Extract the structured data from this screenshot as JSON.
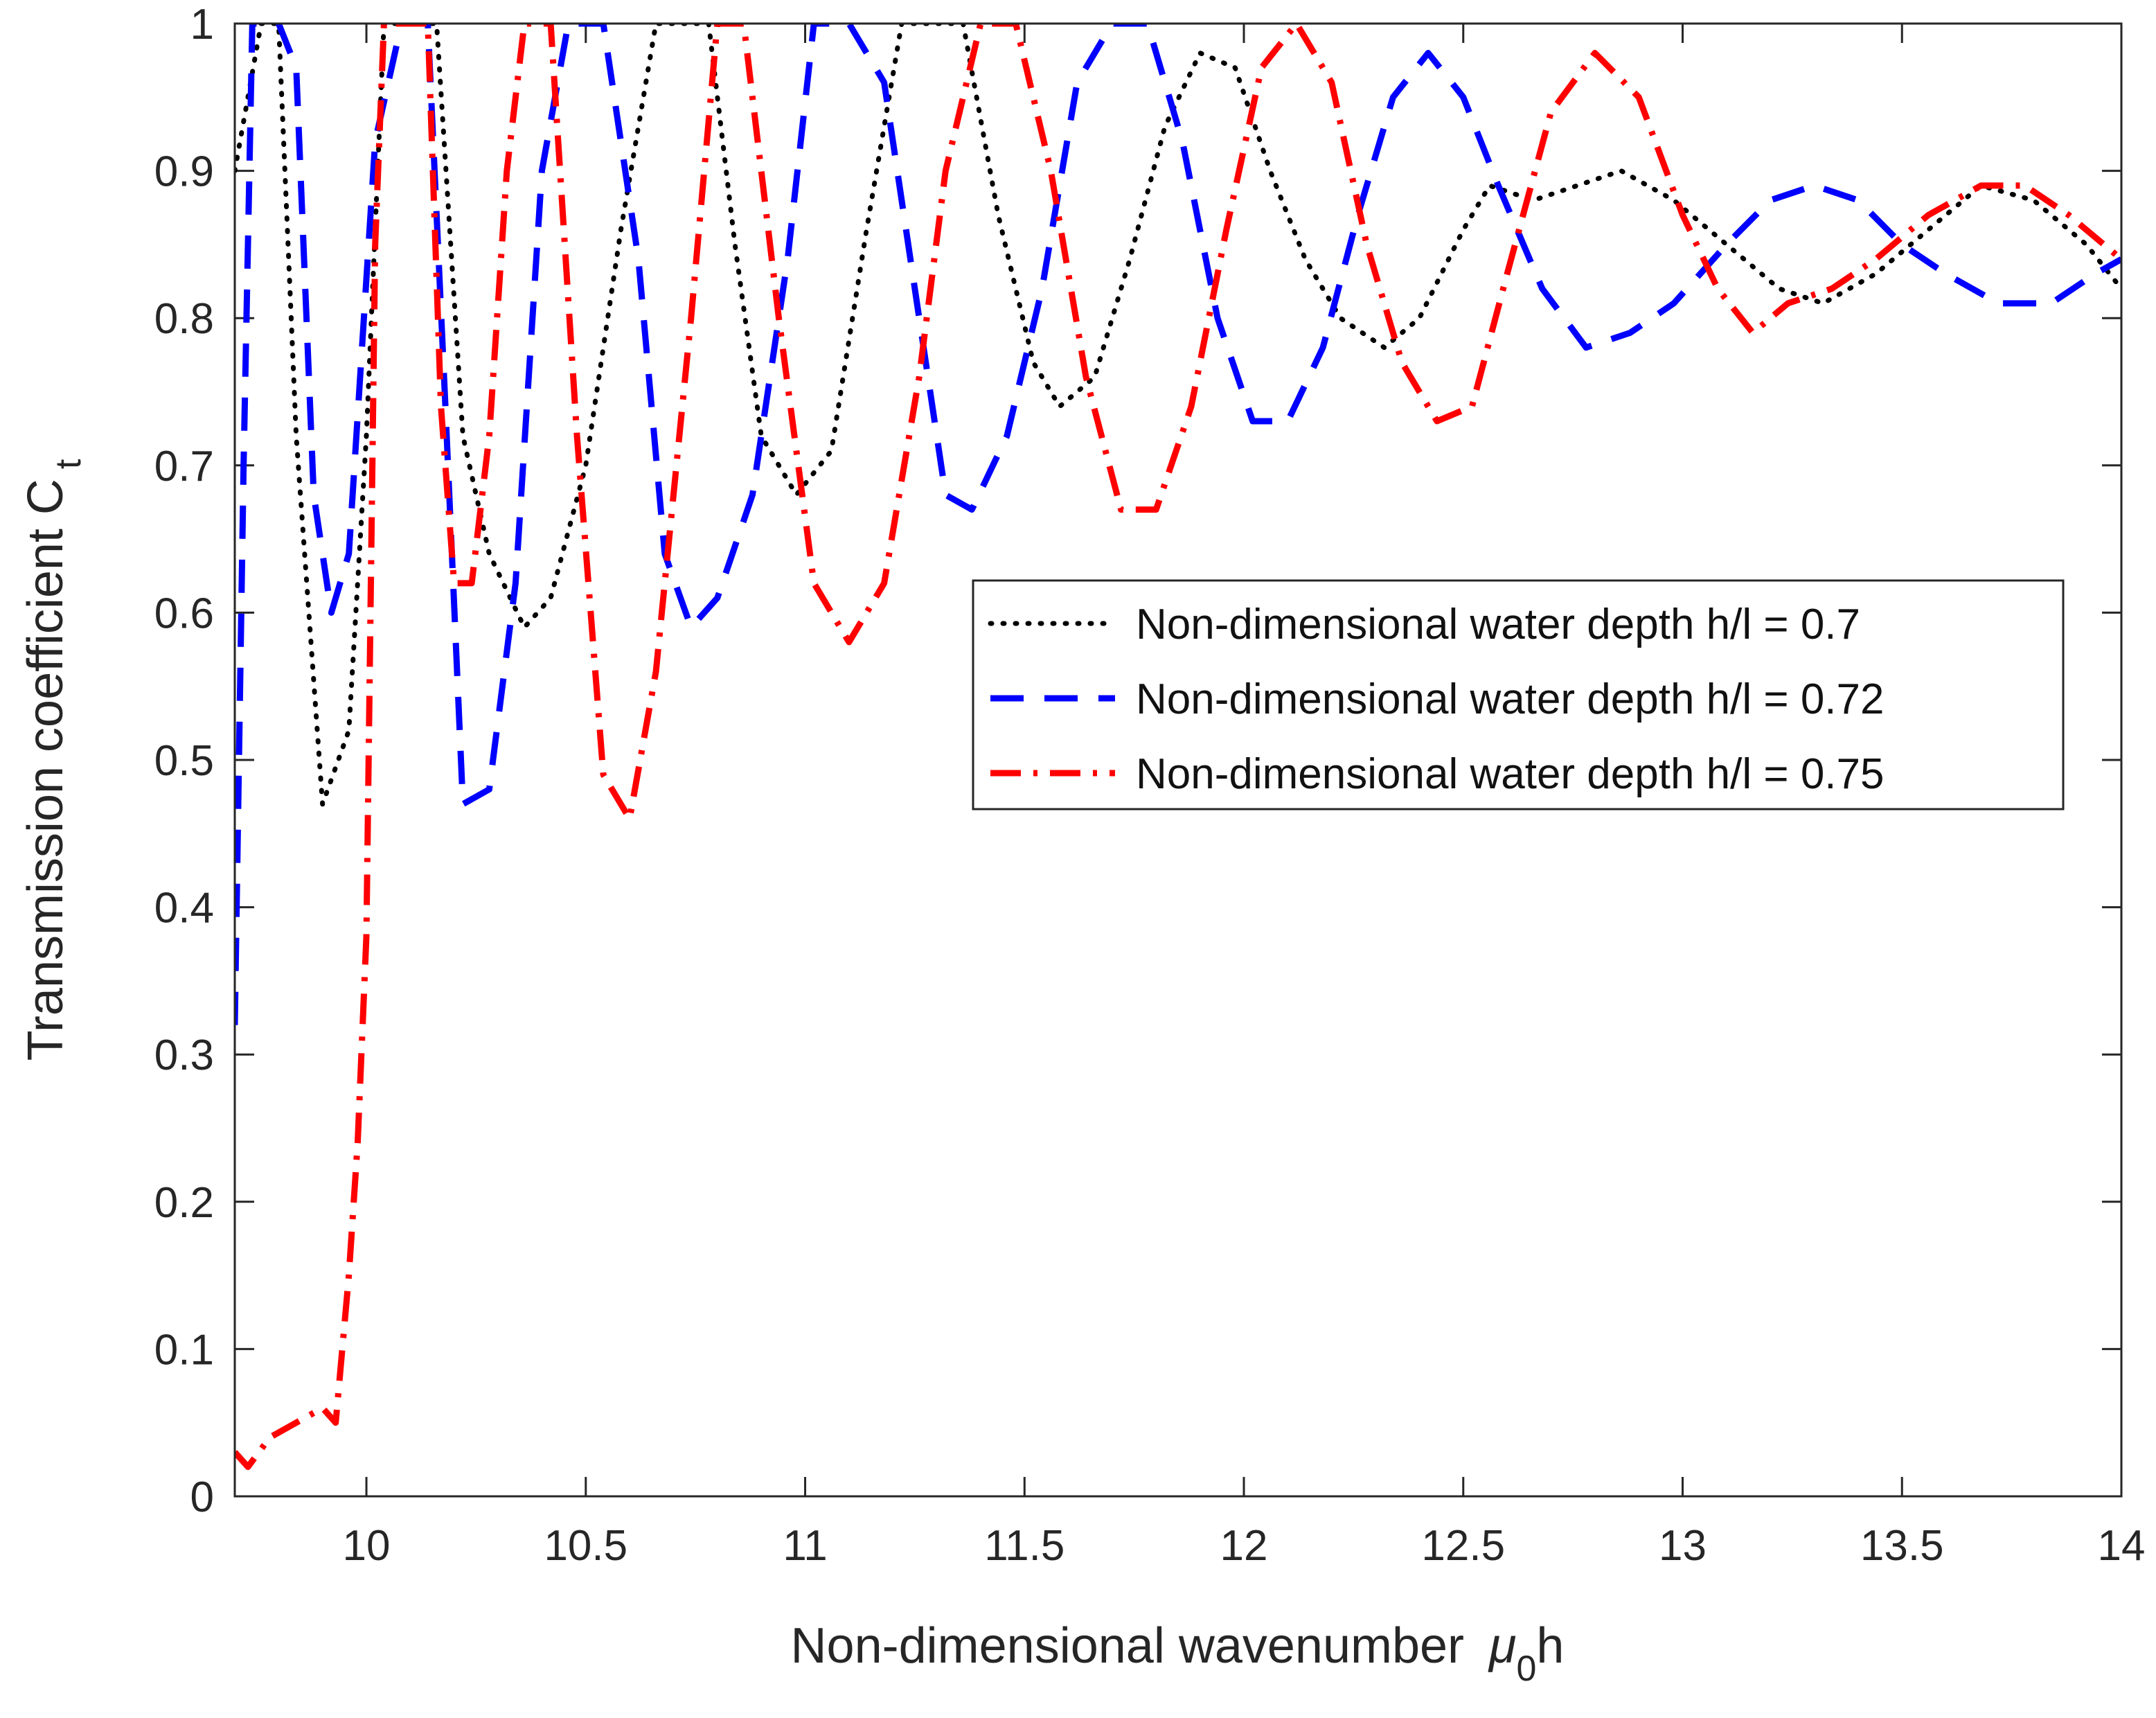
{
  "chart_data": {
    "type": "line",
    "xlabel": "Non-dimensional wavenumber",
    "xlabel_symbol": "μ",
    "xlabel_sub": "0",
    "xlabel_suffix": "h",
    "ylabel": "Transmission coefficient C",
    "ylabel_sub": "t",
    "xlim": [
      9.7,
      14
    ],
    "ylim": [
      0,
      1
    ],
    "xticks": [
      10,
      10.5,
      11,
      11.5,
      12,
      12.5,
      13,
      13.5,
      14
    ],
    "xtick_labels": [
      "10",
      "10.5",
      "11",
      "11.5",
      "12",
      "12.5",
      "13",
      "13.5",
      "14"
    ],
    "yticks": [
      0,
      0.1,
      0.2,
      0.3,
      0.4,
      0.5,
      0.6,
      0.7,
      0.8,
      0.9,
      1
    ],
    "ytick_labels": [
      "0",
      "0.1",
      "0.2",
      "0.3",
      "0.4",
      "0.5",
      "0.6",
      "0.7",
      "0.8",
      "0.9",
      "1"
    ],
    "legend_position": "center-right",
    "series": [
      {
        "name": "Non-dimensional water depth h/l = 0.7",
        "color": "#000000",
        "style": "dotted",
        "x": [
          9.7,
          9.76,
          9.8,
          9.84,
          9.9,
          9.96,
          10.0,
          10.04,
          10.1,
          10.16,
          10.22,
          10.28,
          10.36,
          10.42,
          10.5,
          10.58,
          10.66,
          10.72,
          10.78,
          10.84,
          10.9,
          10.98,
          11.06,
          11.14,
          11.22,
          11.28,
          11.36,
          11.44,
          11.52,
          11.58,
          11.66,
          11.74,
          11.82,
          11.9,
          11.98,
          12.06,
          12.14,
          12.22,
          12.32,
          12.4,
          12.5,
          12.56,
          12.66,
          12.76,
          12.86,
          12.98,
          13.1,
          13.22,
          13.32,
          13.44,
          13.56,
          13.68,
          13.8,
          13.92,
          14.0
        ],
        "y": [
          0.9,
          1.0,
          1.0,
          0.72,
          0.47,
          0.52,
          0.72,
          1.0,
          1.0,
          1.0,
          0.72,
          0.64,
          0.59,
          0.61,
          0.7,
          0.86,
          1.0,
          1.0,
          1.0,
          0.85,
          0.72,
          0.68,
          0.71,
          0.86,
          1.0,
          1.0,
          1.0,
          0.87,
          0.77,
          0.74,
          0.76,
          0.84,
          0.93,
          0.98,
          0.97,
          0.9,
          0.84,
          0.8,
          0.78,
          0.8,
          0.86,
          0.89,
          0.88,
          0.89,
          0.9,
          0.88,
          0.85,
          0.82,
          0.81,
          0.83,
          0.86,
          0.89,
          0.88,
          0.85,
          0.82
        ]
      },
      {
        "name": "Non-dimensional water depth h/l = 0.72",
        "color": "#0000ff",
        "style": "dashed",
        "x": [
          9.7,
          9.72,
          9.74,
          9.76,
          9.8,
          9.84,
          9.88,
          9.92,
          9.96,
          10.02,
          10.08,
          10.14,
          10.18,
          10.22,
          10.28,
          10.34,
          10.4,
          10.46,
          10.54,
          10.62,
          10.68,
          10.74,
          10.8,
          10.88,
          10.96,
          11.02,
          11.1,
          11.18,
          11.26,
          11.32,
          11.38,
          11.46,
          11.54,
          11.62,
          11.7,
          11.78,
          11.86,
          11.94,
          12.02,
          12.1,
          12.18,
          12.26,
          12.34,
          12.42,
          12.5,
          12.58,
          12.68,
          12.78,
          12.88,
          12.98,
          13.1,
          13.2,
          13.3,
          13.4,
          13.5,
          13.6,
          13.72,
          13.84,
          13.94,
          14.0
        ],
        "y": [
          0.32,
          0.7,
          1.0,
          1.0,
          1.0,
          0.97,
          0.68,
          0.6,
          0.64,
          0.92,
          1.0,
          1.0,
          0.74,
          0.47,
          0.48,
          0.62,
          0.9,
          1.0,
          1.0,
          0.84,
          0.64,
          0.59,
          0.61,
          0.68,
          0.84,
          1.0,
          1.0,
          0.96,
          0.8,
          0.68,
          0.67,
          0.72,
          0.82,
          0.96,
          1.0,
          1.0,
          0.92,
          0.8,
          0.73,
          0.73,
          0.78,
          0.87,
          0.95,
          0.98,
          0.95,
          0.89,
          0.82,
          0.78,
          0.79,
          0.81,
          0.85,
          0.88,
          0.89,
          0.88,
          0.85,
          0.83,
          0.81,
          0.81,
          0.83,
          0.84
        ]
      },
      {
        "name": "Non-dimensional water depth h/l = 0.75",
        "color": "#ff0000",
        "style": "dashdot",
        "x": [
          9.7,
          9.73,
          9.78,
          9.84,
          9.9,
          9.93,
          9.96,
          9.98,
          10.0,
          10.02,
          10.04,
          10.06,
          10.1,
          10.14,
          10.17,
          10.2,
          10.24,
          10.28,
          10.32,
          10.36,
          10.42,
          10.48,
          10.54,
          10.6,
          10.66,
          10.74,
          10.8,
          10.86,
          10.94,
          11.02,
          11.1,
          11.18,
          11.26,
          11.32,
          11.4,
          11.48,
          11.56,
          11.64,
          11.72,
          11.8,
          11.88,
          11.96,
          12.04,
          12.12,
          12.2,
          12.28,
          12.36,
          12.44,
          12.52,
          12.6,
          12.7,
          12.8,
          12.9,
          13.0,
          13.08,
          13.16,
          13.24,
          13.34,
          13.44,
          13.56,
          13.68,
          13.78,
          13.88,
          14.0
        ],
        "y": [
          0.03,
          0.02,
          0.04,
          0.05,
          0.06,
          0.05,
          0.15,
          0.24,
          0.38,
          0.85,
          1.0,
          1.0,
          1.0,
          1.0,
          0.74,
          0.62,
          0.62,
          0.72,
          0.9,
          1.0,
          1.0,
          0.72,
          0.49,
          0.46,
          0.56,
          0.8,
          1.0,
          1.0,
          0.8,
          0.62,
          0.58,
          0.62,
          0.76,
          0.9,
          1.0,
          1.0,
          0.9,
          0.76,
          0.67,
          0.67,
          0.74,
          0.86,
          0.97,
          1.0,
          0.96,
          0.85,
          0.77,
          0.73,
          0.74,
          0.83,
          0.94,
          0.98,
          0.95,
          0.87,
          0.82,
          0.79,
          0.81,
          0.82,
          0.84,
          0.87,
          0.89,
          0.89,
          0.87,
          0.84
        ]
      }
    ]
  }
}
